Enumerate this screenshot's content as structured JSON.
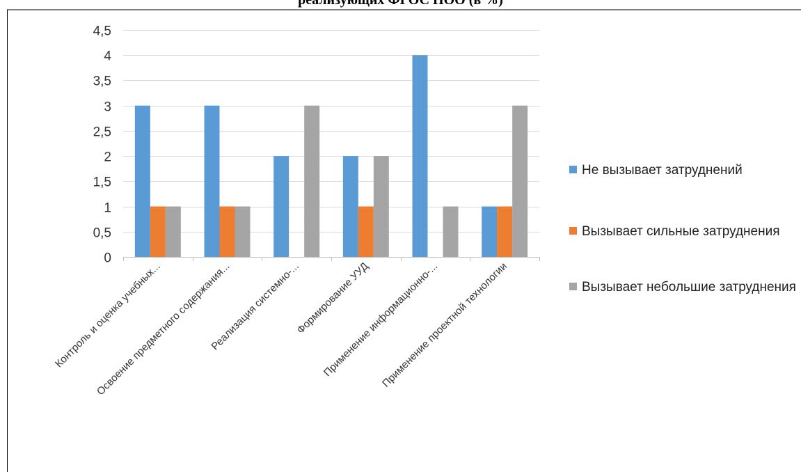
{
  "chart_data": {
    "type": "bar",
    "title": "реализующих ФГОС НОО (в %)",
    "categories": [
      "Контроль и оценка учебных...",
      "Освоение предметного содержания...",
      "Реализация системно-...",
      "Формирование УУД",
      "Применение информационно-...",
      "Применение проектной технологии"
    ],
    "series": [
      {
        "name": "Не вызывает затруднений",
        "color": "#5b9bd5",
        "values": [
          3,
          3,
          2,
          2,
          4,
          1
        ]
      },
      {
        "name": "Вызывает сильные затруднения",
        "color": "#ed7d31",
        "values": [
          1,
          1,
          0,
          1,
          0,
          1
        ]
      },
      {
        "name": "Вызывает небольшие затруднения",
        "color": "#a5a5a5",
        "values": [
          1,
          1,
          3,
          2,
          1,
          3
        ]
      }
    ],
    "y_ticks": [
      "0",
      "0,5",
      "1",
      "1,5",
      "2",
      "2,5",
      "3",
      "3,5",
      "4",
      "4,5"
    ],
    "ylim": [
      0,
      4.5
    ],
    "grid": true,
    "legend_position": "right"
  }
}
